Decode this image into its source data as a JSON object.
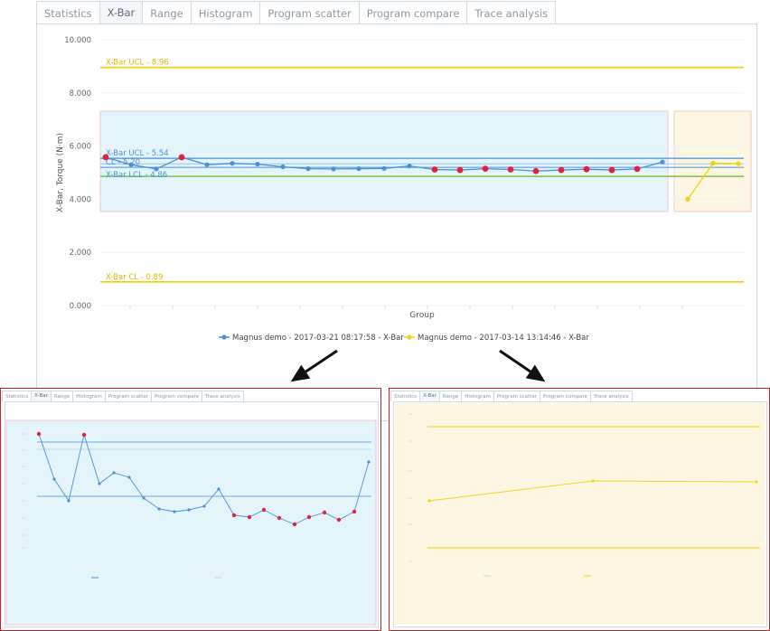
{
  "tabs": [
    {
      "label": "Statistics",
      "active": false
    },
    {
      "label": "X-Bar",
      "active": true
    },
    {
      "label": "Range",
      "active": false
    },
    {
      "label": "Histogram",
      "active": false
    },
    {
      "label": "Program scatter",
      "active": false
    },
    {
      "label": "Program compare",
      "active": false
    },
    {
      "label": "Trace analysis",
      "active": false
    }
  ],
  "inset_right_tabs": [
    {
      "label": "Statistics",
      "active": false
    },
    {
      "label": "X-Bar",
      "active": true
    },
    {
      "label": "Range",
      "active": false
    },
    {
      "label": "Histogram",
      "active": false
    },
    {
      "label": "Program scatter",
      "active": false
    },
    {
      "label": "Program compare",
      "active": false
    },
    {
      "label": "Trace analysis",
      "active": false
    }
  ],
  "colors": {
    "blue_series": "#4a90d9",
    "yellow_series": "#f2d40c",
    "out_of_control": "#e0223a",
    "limit_line_yellow": "#f0d000",
    "limit_line_blue": "#4a90d9",
    "cl_green": "#7cc243",
    "blue_band": "#e3f4fb",
    "yellow_band": "#fdf6e3",
    "inset_border": "#c8242b"
  },
  "chart_data": [
    {
      "type": "line",
      "ylabel": "X-Bar, Torque (N·m)",
      "xlabel": "Group",
      "ylim": [
        0,
        10
      ],
      "yticks": [
        "0.000",
        "2.000",
        "4.000",
        "6.000",
        "8.000",
        "10.000"
      ],
      "grid": true,
      "legend_position": "bottom",
      "annotations": [
        {
          "label": "X-Bar UCL - 8.96",
          "value": 8.96,
          "series": "yellow"
        },
        {
          "label": "X-Bar UCL - 5.54",
          "value": 5.54,
          "series": "blue"
        },
        {
          "label": "CL - 5.20",
          "value": 5.2,
          "series": "blue"
        },
        {
          "label": "X-Bar LCL - 4.86",
          "value": 4.86,
          "series": "blue"
        },
        {
          "label": "X-Bar  CL - 0.89",
          "value": 0.89,
          "series": "yellow"
        }
      ],
      "series": [
        {
          "name": "Magnus demo - 2017-03-21 08:17:58 - X-Bar",
          "color": "blue",
          "values": [
            5.58,
            5.3,
            5.14,
            5.58,
            5.3,
            5.35,
            5.32,
            5.22,
            5.15,
            5.14,
            5.15,
            5.16,
            5.25,
            5.12,
            5.1,
            5.15,
            5.12,
            5.06,
            5.1,
            5.13,
            5.1,
            5.14,
            5.4
          ],
          "out_of_control": [
            0,
            3,
            13,
            14,
            15,
            16,
            17,
            18,
            19,
            20,
            21
          ]
        },
        {
          "name": "Magnus demo - 2017-03-14 13:14:46 - X-Bar",
          "color": "yellow",
          "values": [
            4.0,
            5.36,
            5.34
          ]
        }
      ]
    }
  ]
}
